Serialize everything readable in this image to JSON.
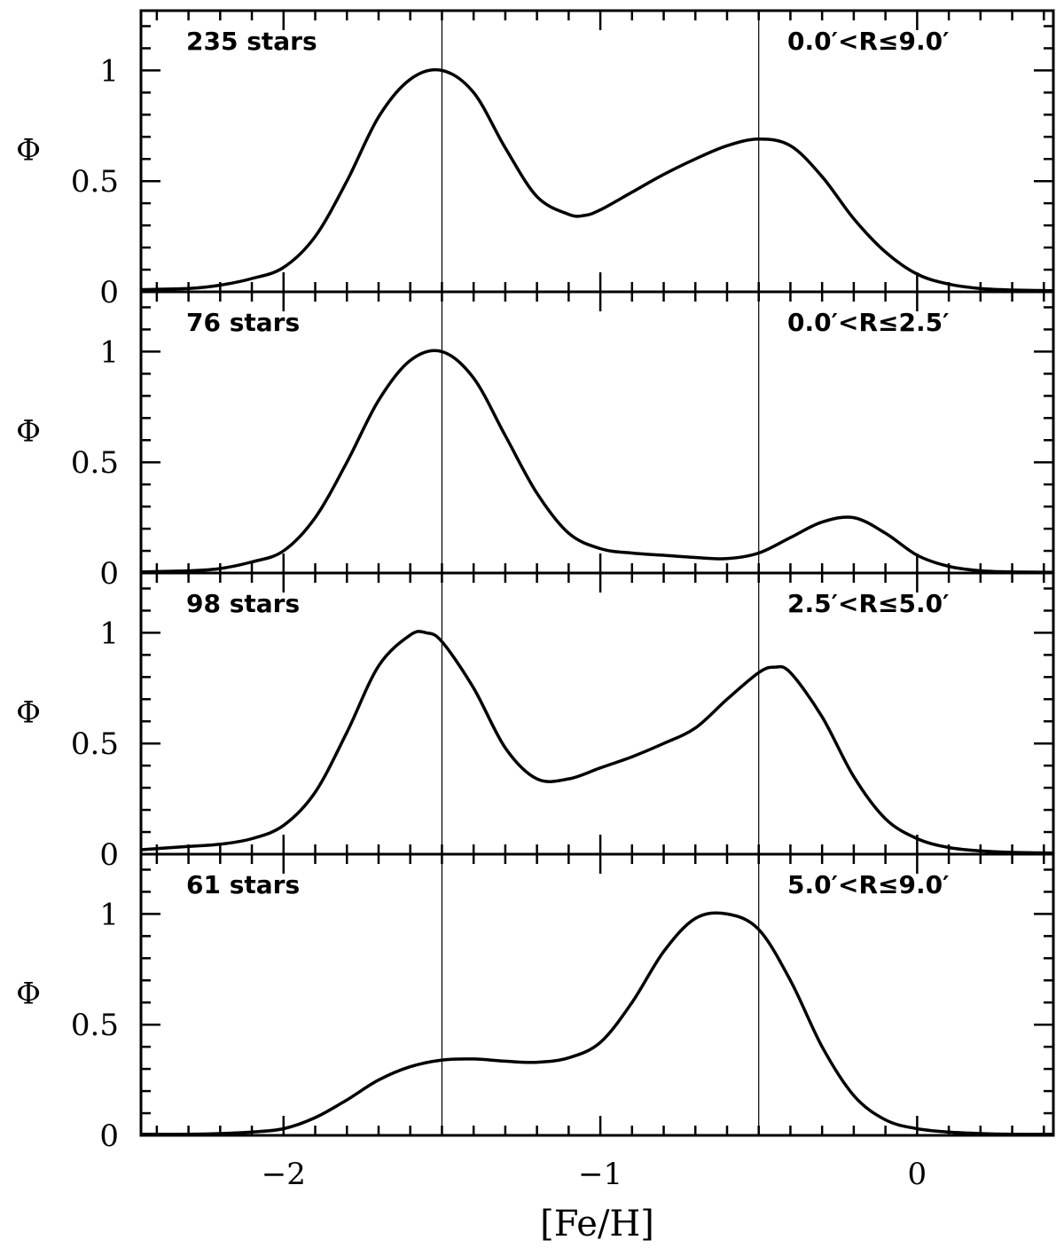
{
  "chart_data": {
    "type": "line",
    "xlabel": "[Fe/H]",
    "xlim": [
      -2.45,
      0.43
    ],
    "x_ticks": [
      -2,
      -1,
      0
    ],
    "x_tick_labels": [
      "−2",
      "−1",
      "0"
    ],
    "x_minor_step": 0.1,
    "reference_lines_x": [
      -1.5,
      -0.5
    ],
    "colors": {
      "line": "#000000",
      "background": "#ffffff"
    },
    "panels": [
      {
        "ylabel": "Φ",
        "ylim": [
          0,
          1.27
        ],
        "y_ticks": [
          0,
          0.5,
          1
        ],
        "y_tick_labels": [
          "0",
          "0.5",
          "1"
        ],
        "count_label": "235 stars",
        "range_label": "0.0′<R≤9.0′",
        "x": [
          -2.45,
          -2.3,
          -2.2,
          -2.1,
          -2.0,
          -1.9,
          -1.8,
          -1.7,
          -1.6,
          -1.5,
          -1.4,
          -1.3,
          -1.2,
          -1.1,
          -1.05,
          -1.0,
          -0.9,
          -0.8,
          -0.7,
          -0.6,
          -0.5,
          -0.4,
          -0.3,
          -0.2,
          -0.1,
          0.0,
          0.1,
          0.2,
          0.3,
          0.43
        ],
        "y": [
          0.01,
          0.015,
          0.03,
          0.06,
          0.11,
          0.25,
          0.5,
          0.79,
          0.96,
          1.0,
          0.9,
          0.65,
          0.43,
          0.35,
          0.345,
          0.37,
          0.45,
          0.53,
          0.6,
          0.66,
          0.69,
          0.66,
          0.52,
          0.33,
          0.18,
          0.08,
          0.035,
          0.015,
          0.008,
          0.005
        ]
      },
      {
        "ylabel": "Φ",
        "ylim": [
          0,
          1.27
        ],
        "y_ticks": [
          0,
          0.5,
          1
        ],
        "y_tick_labels": [
          "0",
          "0.5",
          "1"
        ],
        "count_label": "76 stars",
        "range_label": "0.0′<R≤2.5′",
        "x": [
          -2.45,
          -2.3,
          -2.2,
          -2.1,
          -2.0,
          -1.9,
          -1.8,
          -1.7,
          -1.6,
          -1.5,
          -1.4,
          -1.3,
          -1.2,
          -1.1,
          -1.0,
          -0.9,
          -0.8,
          -0.7,
          -0.6,
          -0.5,
          -0.4,
          -0.3,
          -0.2,
          -0.1,
          0.0,
          0.1,
          0.2,
          0.3,
          0.43
        ],
        "y": [
          0.005,
          0.01,
          0.02,
          0.05,
          0.1,
          0.25,
          0.5,
          0.78,
          0.96,
          1.0,
          0.88,
          0.62,
          0.36,
          0.18,
          0.11,
          0.09,
          0.08,
          0.07,
          0.065,
          0.09,
          0.16,
          0.23,
          0.25,
          0.18,
          0.08,
          0.03,
          0.01,
          0.005,
          0.003
        ]
      },
      {
        "ylabel": "Φ",
        "ylim": [
          0,
          1.27
        ],
        "y_ticks": [
          0,
          0.5,
          1
        ],
        "y_tick_labels": [
          "0",
          "0.5",
          "1"
        ],
        "count_label": "98 stars",
        "range_label": "2.5′<R≤5.0′",
        "x": [
          -2.45,
          -2.3,
          -2.2,
          -2.1,
          -2.0,
          -1.9,
          -1.8,
          -1.7,
          -1.6,
          -1.55,
          -1.5,
          -1.4,
          -1.3,
          -1.2,
          -1.1,
          -1.0,
          -0.9,
          -0.8,
          -0.7,
          -0.6,
          -0.5,
          -0.45,
          -0.4,
          -0.3,
          -0.2,
          -0.1,
          0.0,
          0.1,
          0.2,
          0.3,
          0.43
        ],
        "y": [
          0.02,
          0.035,
          0.045,
          0.07,
          0.13,
          0.28,
          0.55,
          0.85,
          0.99,
          1.0,
          0.96,
          0.75,
          0.48,
          0.34,
          0.34,
          0.39,
          0.44,
          0.5,
          0.57,
          0.7,
          0.82,
          0.845,
          0.82,
          0.62,
          0.35,
          0.16,
          0.07,
          0.03,
          0.015,
          0.008,
          0.005
        ]
      },
      {
        "ylabel": "Φ",
        "ylim": [
          0,
          1.27
        ],
        "y_ticks": [
          0,
          0.5,
          1
        ],
        "y_tick_labels": [
          "0",
          "0.5",
          "1"
        ],
        "count_label": "61 stars",
        "range_label": "5.0′<R≤9.0′",
        "x": [
          -2.45,
          -2.3,
          -2.2,
          -2.1,
          -2.0,
          -1.9,
          -1.8,
          -1.7,
          -1.6,
          -1.5,
          -1.4,
          -1.3,
          -1.2,
          -1.1,
          -1.0,
          -0.9,
          -0.8,
          -0.7,
          -0.6,
          -0.5,
          -0.4,
          -0.3,
          -0.2,
          -0.1,
          0.0,
          0.1,
          0.2,
          0.3,
          0.43
        ],
        "y": [
          0.005,
          0.005,
          0.008,
          0.015,
          0.03,
          0.08,
          0.16,
          0.25,
          0.31,
          0.34,
          0.345,
          0.335,
          0.33,
          0.35,
          0.42,
          0.6,
          0.83,
          0.98,
          1.0,
          0.93,
          0.7,
          0.4,
          0.18,
          0.07,
          0.03,
          0.015,
          0.008,
          0.005,
          0.005
        ]
      }
    ]
  }
}
